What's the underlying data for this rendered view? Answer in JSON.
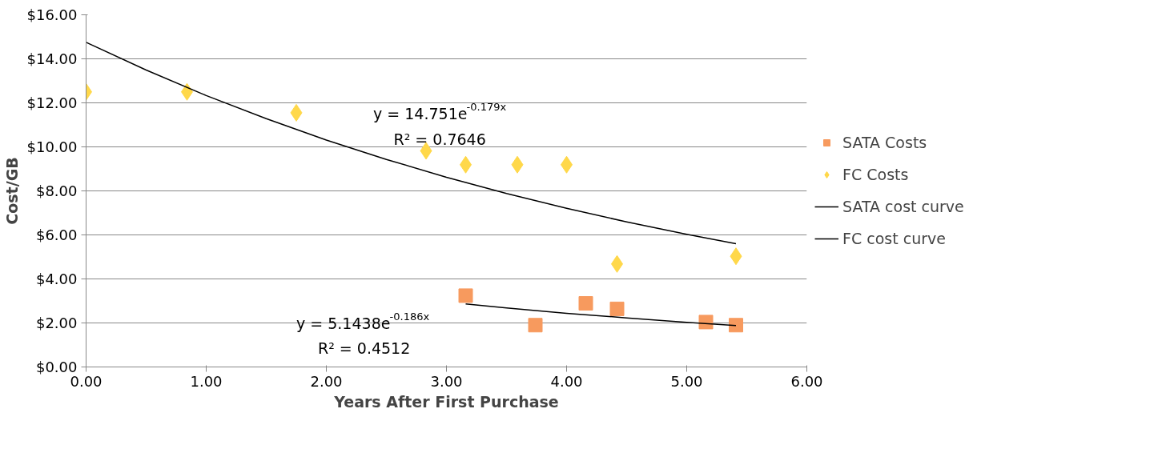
{
  "chart_data": {
    "type": "scatter",
    "xlabel": "Years After First Purchase",
    "ylabel": "Cost/GB",
    "xlim": [
      0,
      6
    ],
    "ylim": [
      0,
      16
    ],
    "xticks": [
      {
        "value": 0,
        "label": "0.00"
      },
      {
        "value": 1,
        "label": "1.00"
      },
      {
        "value": 2,
        "label": "2.00"
      },
      {
        "value": 3,
        "label": "3.00"
      },
      {
        "value": 4,
        "label": "4.00"
      },
      {
        "value": 5,
        "label": "5.00"
      },
      {
        "value": 6,
        "label": "6.00"
      }
    ],
    "yticks": [
      {
        "value": 0,
        "label": "$0.00"
      },
      {
        "value": 2,
        "label": "$2.00"
      },
      {
        "value": 4,
        "label": "$4.00"
      },
      {
        "value": 6,
        "label": "$6.00"
      },
      {
        "value": 8,
        "label": "$8.00"
      },
      {
        "value": 10,
        "label": "$10.00"
      },
      {
        "value": 12,
        "label": "$12.00"
      },
      {
        "value": 14,
        "label": "$14.00"
      },
      {
        "value": 16,
        "label": "$16.00"
      }
    ],
    "grid": "y",
    "legend": "right",
    "series": [
      {
        "name": "SATA Costs",
        "marker": "square",
        "color": "#f79a5e",
        "x": [
          3.16,
          3.74,
          4.16,
          4.42,
          5.16,
          5.41
        ],
        "values": [
          3.24,
          1.9,
          2.89,
          2.64,
          2.04,
          1.9
        ]
      },
      {
        "name": "FC Costs",
        "marker": "diamond",
        "color": "#ffd84a",
        "x": [
          0,
          0.84,
          1.75,
          2.83,
          3.16,
          3.59,
          4.0,
          4.42,
          5.41
        ],
        "values": [
          12.5,
          12.5,
          11.55,
          9.82,
          9.19,
          9.19,
          9.19,
          4.68,
          5.03
        ]
      },
      {
        "name": "SATA cost curve",
        "type": "line",
        "marker": "none",
        "color": "#000000",
        "x": [
          3.16,
          3.5,
          4,
          4.5,
          5,
          5.41
        ],
        "values": [
          2.86,
          2.68,
          2.44,
          2.23,
          2.03,
          1.88
        ]
      },
      {
        "name": "FC cost curve",
        "type": "line",
        "marker": "none",
        "color": "#000000",
        "x": [
          0,
          0.5,
          1,
          1.5,
          2,
          2.5,
          3,
          3.5,
          4,
          4.5,
          5,
          5.41
        ],
        "values": [
          14.75,
          13.49,
          12.33,
          11.28,
          10.31,
          9.43,
          8.62,
          7.88,
          7.21,
          6.59,
          6.03,
          5.6
        ]
      }
    ],
    "annotations": [
      "y = 14.751e$^{-0.179x}$",
      "R² = 0.7646",
      "y = 5.1438e$^{-0.186x}$",
      "R² = 0.4512"
    ]
  }
}
